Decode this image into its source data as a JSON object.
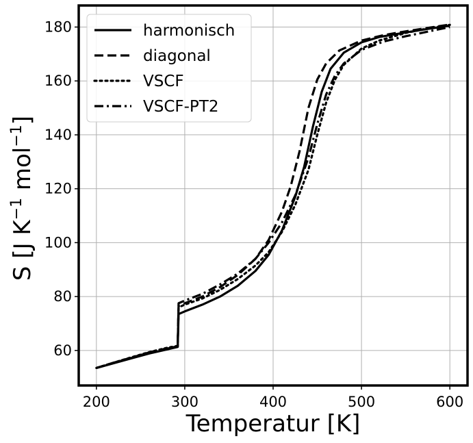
{
  "chart_data": {
    "type": "line",
    "title": "",
    "xlabel": "Temperatur [K]",
    "ylabel": {
      "base": "S [J K",
      "exp1": "−1",
      "mid": " mol",
      "exp2": "−1",
      "end": "]"
    },
    "xlim": [
      180,
      620
    ],
    "ylim": [
      47,
      188
    ],
    "xticks": [
      200,
      300,
      400,
      500,
      600
    ],
    "yticks": [
      60,
      80,
      100,
      120,
      140,
      160,
      180
    ],
    "xtick_labels": [
      "200",
      "300",
      "400",
      "500",
      "600"
    ],
    "ytick_labels": [
      "60",
      "80",
      "100",
      "120",
      "140",
      "160",
      "180"
    ],
    "grid": true,
    "legend_position": "top-left",
    "series": [
      {
        "name": "harmonisch",
        "style": "solid",
        "points": [
          [
            200,
            53.5
          ],
          [
            220,
            55.3
          ],
          [
            240,
            57.1
          ],
          [
            260,
            58.9
          ],
          [
            280,
            60.4
          ],
          [
            292,
            61.3
          ],
          [
            293,
            73.5
          ],
          [
            300,
            74.5
          ],
          [
            320,
            77.0
          ],
          [
            340,
            80.0
          ],
          [
            360,
            84.0
          ],
          [
            380,
            89.5
          ],
          [
            395,
            95.5
          ],
          [
            410,
            104.5
          ],
          [
            425,
            117.0
          ],
          [
            435,
            128.0
          ],
          [
            445,
            143.0
          ],
          [
            455,
            156.0
          ],
          [
            465,
            164.5
          ],
          [
            480,
            170.5
          ],
          [
            500,
            174.3
          ],
          [
            520,
            176.3
          ],
          [
            550,
            178.0
          ],
          [
            575,
            179.3
          ],
          [
            600,
            180.5
          ]
        ]
      },
      {
        "name": "diagonal",
        "style": "dashed",
        "points": [
          [
            200,
            53.5
          ],
          [
            220,
            55.5
          ],
          [
            240,
            57.4
          ],
          [
            260,
            59.3
          ],
          [
            280,
            60.8
          ],
          [
            292,
            61.5
          ],
          [
            293,
            76.5
          ],
          [
            300,
            77.5
          ],
          [
            320,
            80.0
          ],
          [
            340,
            83.5
          ],
          [
            360,
            88.0
          ],
          [
            380,
            94.0
          ],
          [
            395,
            101.0
          ],
          [
            410,
            111.5
          ],
          [
            420,
            121.0
          ],
          [
            430,
            134.0
          ],
          [
            440,
            150.0
          ],
          [
            450,
            160.5
          ],
          [
            460,
            166.5
          ],
          [
            475,
            171.3
          ],
          [
            500,
            175.0
          ],
          [
            525,
            177.0
          ],
          [
            550,
            178.4
          ],
          [
            575,
            179.7
          ],
          [
            600,
            180.9
          ]
        ]
      },
      {
        "name": "VSCF",
        "style": "dotted",
        "points": [
          [
            200,
            53.5
          ],
          [
            220,
            55.5
          ],
          [
            240,
            57.5
          ],
          [
            260,
            59.4
          ],
          [
            280,
            61.0
          ],
          [
            292,
            61.7
          ],
          [
            293,
            76.0
          ],
          [
            300,
            77.0
          ],
          [
            320,
            79.3
          ],
          [
            340,
            82.5
          ],
          [
            360,
            86.5
          ],
          [
            380,
            91.5
          ],
          [
            395,
            96.5
          ],
          [
            410,
            104.0
          ],
          [
            425,
            114.0
          ],
          [
            440,
            127.0
          ],
          [
            450,
            140.0
          ],
          [
            460,
            152.0
          ],
          [
            470,
            160.5
          ],
          [
            480,
            166.0
          ],
          [
            500,
            172.0
          ],
          [
            520,
            175.0
          ],
          [
            550,
            177.8
          ],
          [
            575,
            179.5
          ],
          [
            600,
            180.8
          ]
        ]
      },
      {
        "name": "VSCF-PT2",
        "style": "dashdot",
        "points": [
          [
            200,
            53.5
          ],
          [
            220,
            55.4
          ],
          [
            240,
            57.3
          ],
          [
            260,
            59.2
          ],
          [
            280,
            60.7
          ],
          [
            292,
            61.4
          ],
          [
            293,
            77.5
          ],
          [
            300,
            78.5
          ],
          [
            320,
            81.0
          ],
          [
            340,
            84.5
          ],
          [
            360,
            88.5
          ],
          [
            380,
            94.0
          ],
          [
            395,
            100.0
          ],
          [
            410,
            107.5
          ],
          [
            425,
            117.5
          ],
          [
            440,
            131.5
          ],
          [
            450,
            144.0
          ],
          [
            460,
            155.0
          ],
          [
            470,
            162.0
          ],
          [
            480,
            166.5
          ],
          [
            500,
            171.5
          ],
          [
            525,
            174.6
          ],
          [
            550,
            176.6
          ],
          [
            575,
            178.3
          ],
          [
            600,
            180.0
          ]
        ]
      }
    ]
  }
}
